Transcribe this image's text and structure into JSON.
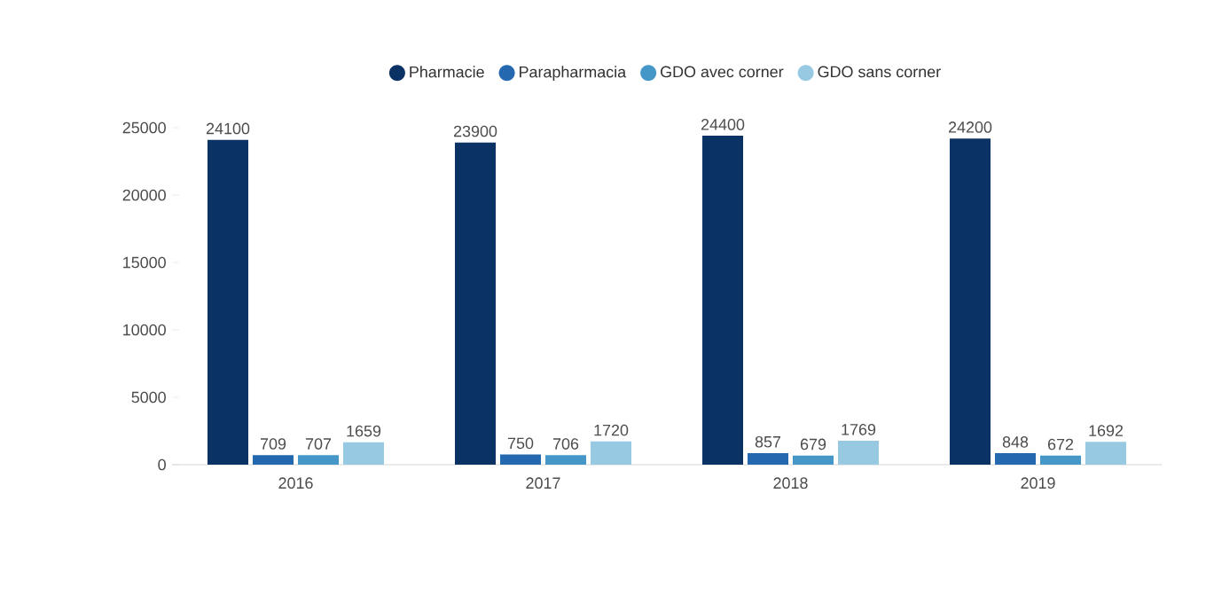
{
  "chart_data": {
    "type": "bar",
    "categories": [
      "2016",
      "2017",
      "2018",
      "2019"
    ],
    "series": [
      {
        "name": "Pharmacie",
        "color": "#0b3265",
        "values": [
          24100,
          23900,
          24400,
          24200
        ]
      },
      {
        "name": "Parapharmacia",
        "color": "#2468b0",
        "values": [
          709,
          750,
          857,
          848
        ]
      },
      {
        "name": "GDO avec corner",
        "color": "#4597c8",
        "values": [
          707,
          706,
          679,
          672
        ]
      },
      {
        "name": "GDO sans corner",
        "color": "#98c9e2",
        "values": [
          1659,
          1720,
          1769,
          1692
        ]
      }
    ],
    "ylim": [
      0,
      25000
    ],
    "yticks": [
      0,
      5000,
      10000,
      15000,
      20000,
      25000
    ],
    "data_labels": true,
    "legend": "top",
    "grid": false
  }
}
